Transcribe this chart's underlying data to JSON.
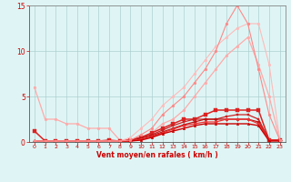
{
  "x": [
    0,
    1,
    2,
    3,
    4,
    5,
    6,
    7,
    8,
    9,
    10,
    11,
    12,
    13,
    14,
    15,
    16,
    17,
    18,
    19,
    20,
    21,
    22,
    23
  ],
  "series": [
    {
      "y": [
        6.0,
        2.5,
        2.5,
        2.0,
        2.0,
        1.5,
        1.5,
        1.5,
        0.2,
        0.2,
        0.5,
        1.0,
        2.0,
        2.5,
        3.5,
        5.0,
        6.5,
        8.0,
        9.5,
        10.5,
        11.5,
        8.5,
        5.0,
        0.2
      ],
      "color": "#ffaaaa",
      "lw": 0.9,
      "marker": "o",
      "ms": 2.0
    },
    {
      "y": [
        1.2,
        0.1,
        0.1,
        0.1,
        0.1,
        0.1,
        0.1,
        0.2,
        0.1,
        0.2,
        0.5,
        1.0,
        1.5,
        2.0,
        2.5,
        2.5,
        3.0,
        3.5,
        3.5,
        3.5,
        3.5,
        3.5,
        0.2,
        0.2
      ],
      "color": "#dd2222",
      "lw": 1.1,
      "marker": "s",
      "ms": 2.2
    },
    {
      "y": [
        0.1,
        0.1,
        0.1,
        0.1,
        0.1,
        0.1,
        0.1,
        0.1,
        0.1,
        0.2,
        0.5,
        0.8,
        1.3,
        1.8,
        2.2,
        2.5,
        2.5,
        2.5,
        2.8,
        3.0,
        3.0,
        2.5,
        0.2,
        0.2
      ],
      "color": "#cc2222",
      "lw": 0.9,
      "marker": "s",
      "ms": 1.8
    },
    {
      "y": [
        0.1,
        0.1,
        0.1,
        0.1,
        0.1,
        0.1,
        0.1,
        0.1,
        0.1,
        0.2,
        0.4,
        0.7,
        1.1,
        1.5,
        1.9,
        2.2,
        2.5,
        2.5,
        2.5,
        2.5,
        2.5,
        2.2,
        0.2,
        0.2
      ],
      "color": "#bb1111",
      "lw": 0.9,
      "marker": "D",
      "ms": 1.8
    },
    {
      "y": [
        0.1,
        0.1,
        0.1,
        0.1,
        0.1,
        0.1,
        0.1,
        0.1,
        0.1,
        0.1,
        0.3,
        0.6,
        1.0,
        1.4,
        1.8,
        2.0,
        2.2,
        2.2,
        2.5,
        2.5,
        2.5,
        2.0,
        0.2,
        0.2
      ],
      "color": "#ee3333",
      "lw": 0.9,
      "marker": "D",
      "ms": 1.8
    },
    {
      "y": [
        0.1,
        0.1,
        0.1,
        0.1,
        0.1,
        0.1,
        0.1,
        0.1,
        0.1,
        0.1,
        0.2,
        0.5,
        0.9,
        1.2,
        1.5,
        1.8,
        2.0,
        2.0,
        2.0,
        2.0,
        2.0,
        1.8,
        0.1,
        0.1
      ],
      "color": "#cc0000",
      "lw": 1.0,
      "marker": "^",
      "ms": 1.8
    },
    {
      "y": [
        0.1,
        0.1,
        0.1,
        0.1,
        0.1,
        0.1,
        0.1,
        0.1,
        0.1,
        0.5,
        1.5,
        2.5,
        4.0,
        5.0,
        6.0,
        7.5,
        9.0,
        10.5,
        11.5,
        12.5,
        13.0,
        13.0,
        8.5,
        0.2
      ],
      "color": "#ffbbbb",
      "lw": 0.8,
      "marker": "o",
      "ms": 2.0
    },
    {
      "y": [
        0.1,
        0.1,
        0.1,
        0.1,
        0.1,
        0.1,
        0.1,
        0.1,
        0.1,
        0.2,
        0.8,
        1.5,
        3.0,
        4.0,
        5.0,
        6.5,
        8.0,
        10.0,
        13.0,
        15.0,
        13.0,
        8.0,
        3.0,
        0.2
      ],
      "color": "#ff8888",
      "lw": 0.8,
      "marker": "o",
      "ms": 2.0
    }
  ],
  "xlabel": "Vent moyen/en rafales ( km/h )",
  "xlim": [
    -0.5,
    23.5
  ],
  "ylim": [
    0,
    15
  ],
  "yticks": [
    0,
    5,
    10,
    15
  ],
  "xticks": [
    0,
    1,
    2,
    3,
    4,
    5,
    6,
    7,
    8,
    9,
    10,
    11,
    12,
    13,
    14,
    15,
    16,
    17,
    18,
    19,
    20,
    21,
    22,
    23
  ],
  "bg_color": "#dff5f5",
  "grid_color": "#aacccc",
  "tick_color": "#cc0000",
  "label_color": "#cc0000"
}
